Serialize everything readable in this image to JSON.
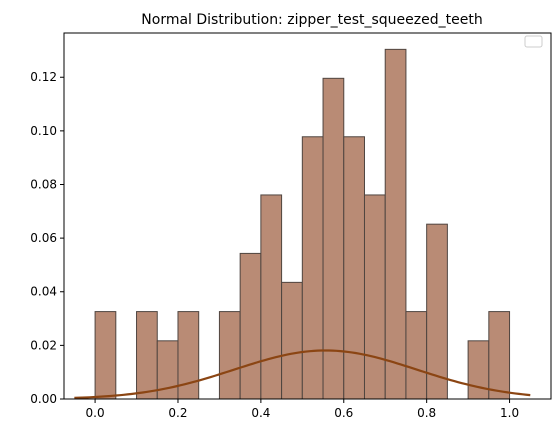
{
  "chart_data": {
    "type": "bar",
    "title": "Normal Distribution: zipper_test_squeezed_teeth",
    "xlabel": "",
    "ylabel": "",
    "xlim": [
      -0.075,
      1.1
    ],
    "ylim": [
      0,
      0.1365
    ],
    "grid": false,
    "legend": {
      "placement": "top-right",
      "entries": []
    },
    "colors": {
      "bar_fill": "#b98b75",
      "bar_edge": "#4f4540",
      "curve": "#8b4513"
    },
    "x_ticks": [
      {
        "value": 0.0,
        "label": "0.0"
      },
      {
        "value": 0.2,
        "label": "0.2"
      },
      {
        "value": 0.4,
        "label": "0.4"
      },
      {
        "value": 0.6,
        "label": "0.6"
      },
      {
        "value": 0.8,
        "label": "0.8"
      },
      {
        "value": 1.0,
        "label": "1.0"
      }
    ],
    "y_ticks": [
      {
        "value": 0.0,
        "label": "0.00"
      },
      {
        "value": 0.02,
        "label": "0.02"
      },
      {
        "value": 0.04,
        "label": "0.04"
      },
      {
        "value": 0.06,
        "label": "0.06"
      },
      {
        "value": 0.08,
        "label": "0.08"
      },
      {
        "value": 0.1,
        "label": "0.10"
      },
      {
        "value": 0.12,
        "label": "0.12"
      }
    ],
    "bins": [
      {
        "x0": 0.0,
        "x1": 0.05,
        "value": 0.0326
      },
      {
        "x0": 0.05,
        "x1": 0.1,
        "value": 0
      },
      {
        "x0": 0.1,
        "x1": 0.15,
        "value": 0.0326
      },
      {
        "x0": 0.15,
        "x1": 0.2,
        "value": 0.0217
      },
      {
        "x0": 0.2,
        "x1": 0.25,
        "value": 0.0326
      },
      {
        "x0": 0.25,
        "x1": 0.3,
        "value": 0
      },
      {
        "x0": 0.3,
        "x1": 0.35,
        "value": 0.0326
      },
      {
        "x0": 0.35,
        "x1": 0.4,
        "value": 0.0543
      },
      {
        "x0": 0.4,
        "x1": 0.45,
        "value": 0.0761
      },
      {
        "x0": 0.45,
        "x1": 0.5,
        "value": 0.0435
      },
      {
        "x0": 0.5,
        "x1": 0.55,
        "value": 0.0978
      },
      {
        "x0": 0.55,
        "x1": 0.6,
        "value": 0.1196
      },
      {
        "x0": 0.6,
        "x1": 0.65,
        "value": 0.0978
      },
      {
        "x0": 0.65,
        "x1": 0.7,
        "value": 0.0761
      },
      {
        "x0": 0.7,
        "x1": 0.75,
        "value": 0.1304
      },
      {
        "x0": 0.75,
        "x1": 0.8,
        "value": 0.0326
      },
      {
        "x0": 0.8,
        "x1": 0.85,
        "value": 0.0652
      },
      {
        "x0": 0.85,
        "x1": 0.9,
        "value": 0
      },
      {
        "x0": 0.9,
        "x1": 0.95,
        "value": 0.0217
      },
      {
        "x0": 0.95,
        "x1": 1.0,
        "value": 0.0326
      }
    ],
    "curve": {
      "type": "line",
      "mean": 0.556,
      "std": 0.22,
      "peak": 0.0181,
      "x_range": [
        -0.05,
        1.05
      ]
    }
  }
}
